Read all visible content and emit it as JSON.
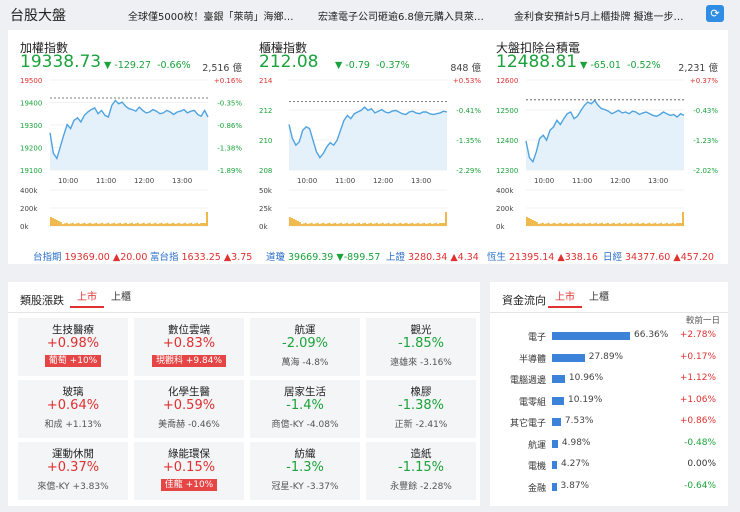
{
  "header": {
    "title": "台股大盤",
    "news": [
      "全球僅5000枚！臺銀「萊萌」海鄉…",
      "宏達電子公司砸逾6.8億元購入貝萊…",
      "金利食安預計5月上櫃掛牌 擬進一步…"
    ]
  },
  "indices": [
    {
      "name": "加權指數",
      "value": "19338.73",
      "change": "-129.27",
      "pct": "-0.66%",
      "volume": "2,516 億",
      "y_labels": [
        "19500",
        "19400",
        "19300",
        "19200",
        "19100"
      ],
      "pct_labels": [
        "+0.16%",
        "-0.35%",
        "-0.86%",
        "-1.38%",
        "-1.89%"
      ],
      "x_labels": [
        "10:00",
        "11:00",
        "12:00",
        "13:00"
      ],
      "vol_labels": [
        "400k",
        "200k",
        "0k"
      ],
      "ref_level": 0.8,
      "line": [
        0.45,
        0.2,
        0.14,
        0.28,
        0.42,
        0.55,
        0.5,
        0.6,
        0.63,
        0.58,
        0.66,
        0.7,
        0.73,
        0.75,
        0.68,
        0.72,
        0.66,
        0.64,
        0.78,
        0.84,
        0.8,
        0.82,
        0.77,
        0.74,
        0.73,
        0.71,
        0.76,
        0.72,
        0.69,
        0.7,
        0.73,
        0.71,
        0.68,
        0.69,
        0.72,
        0.7,
        0.67,
        0.7,
        0.71,
        0.73,
        0.69,
        0.71,
        0.72,
        0.67,
        0.65,
        0.72,
        0.64
      ]
    },
    {
      "name": "櫃檯指數",
      "value": "212.08",
      "change": "-0.79",
      "pct": "-0.37%",
      "volume": "848 億",
      "y_labels": [
        "214",
        "212",
        "210",
        "208"
      ],
      "pct_labels": [
        "+0.53%",
        "-0.41%",
        "-1.35%",
        "-2.29%"
      ],
      "x_labels": [
        "10:00",
        "11:00",
        "12:00",
        "13:00"
      ],
      "vol_labels": [
        "50k",
        "25k",
        "0k"
      ],
      "ref_level": 0.76,
      "line": [
        0.55,
        0.38,
        0.3,
        0.34,
        0.48,
        0.52,
        0.5,
        0.36,
        0.22,
        0.15,
        0.2,
        0.28,
        0.33,
        0.3,
        0.36,
        0.48,
        0.6,
        0.66,
        0.62,
        0.68,
        0.7,
        0.72,
        0.76,
        0.72,
        0.74,
        0.69,
        0.71,
        0.73,
        0.7,
        0.69,
        0.71,
        0.72,
        0.7,
        0.68,
        0.67,
        0.7,
        0.71,
        0.69,
        0.68,
        0.7,
        0.7,
        0.68,
        0.67,
        0.68,
        0.69,
        0.71,
        0.7
      ]
    },
    {
      "name": "大盤扣除台積電",
      "value": "12488.81",
      "change": "-65.01",
      "pct": "-0.52%",
      "volume": "2,231 億",
      "y_labels": [
        "12600",
        "12500",
        "12400",
        "12300"
      ],
      "pct_labels": [
        "+0.37%",
        "-0.43%",
        "-1.23%",
        "-2.02%"
      ],
      "x_labels": [
        "10:00",
        "11:00",
        "12:00",
        "13:00"
      ],
      "vol_labels": [
        "400k",
        "200k",
        "0k"
      ],
      "ref_level": 0.78,
      "line": [
        0.35,
        0.15,
        0.1,
        0.22,
        0.38,
        0.42,
        0.36,
        0.48,
        0.52,
        0.6,
        0.55,
        0.62,
        0.68,
        0.7,
        0.62,
        0.65,
        0.72,
        0.78,
        0.82,
        0.8,
        0.84,
        0.78,
        0.74,
        0.73,
        0.71,
        0.68,
        0.7,
        0.72,
        0.69,
        0.7,
        0.68,
        0.71,
        0.7,
        0.67,
        0.69,
        0.7,
        0.68,
        0.66,
        0.65,
        0.67,
        0.7,
        0.68,
        0.66,
        0.67,
        0.64,
        0.68,
        0.66
      ]
    }
  ],
  "tickers": [
    {
      "name": "台指期",
      "value": "19369.00",
      "change": "▲20.00",
      "dir": "up"
    },
    {
      "name": "富台指",
      "value": "1633.25",
      "change": "▲3.75",
      "dir": "up"
    },
    {
      "name": "道瓊",
      "value": "39669.39",
      "change": "▼-899.57",
      "dir": "dn"
    },
    {
      "name": "上證",
      "value": "3280.34",
      "change": "▲4.34",
      "dir": "up"
    },
    {
      "name": "恆生",
      "value": "21395.14",
      "change": "▲338.16",
      "dir": "up"
    },
    {
      "name": "日經",
      "value": "34377.60",
      "change": "▲457.20",
      "dir": "up"
    }
  ],
  "sectors": {
    "title": "類股漲跌",
    "tabs": [
      "上市",
      "上櫃"
    ],
    "cards": [
      {
        "name": "生技醫療",
        "pct": "+0.98%",
        "dir": "up",
        "stock": "葡萄",
        "stock_chg": "+10%",
        "badge": true
      },
      {
        "name": "數位雲端",
        "pct": "+0.83%",
        "dir": "up",
        "stock": "現觀科",
        "stock_chg": "+9.84%",
        "badge": true
      },
      {
        "name": "航運",
        "pct": "-2.09%",
        "dir": "dn",
        "stock": "萬海",
        "stock_chg": "-4.8%",
        "badge": false
      },
      {
        "name": "觀光",
        "pct": "-1.85%",
        "dir": "dn",
        "stock": "遠雄來",
        "stock_chg": "-3.16%",
        "badge": false
      },
      {
        "name": "玻璃",
        "pct": "+0.64%",
        "dir": "up",
        "stock": "和成",
        "stock_chg": "+1.13%",
        "badge": false
      },
      {
        "name": "化學生醫",
        "pct": "+0.59%",
        "dir": "up",
        "stock": "美喬赫",
        "stock_chg": "-0.46%",
        "badge": false
      },
      {
        "name": "居家生活",
        "pct": "-1.4%",
        "dir": "dn",
        "stock": "商億-KY",
        "stock_chg": "-4.08%",
        "badge": false
      },
      {
        "name": "橡膠",
        "pct": "-1.38%",
        "dir": "dn",
        "stock": "正新",
        "stock_chg": "-2.41%",
        "badge": false
      },
      {
        "name": "運動休閒",
        "pct": "+0.37%",
        "dir": "up",
        "stock": "來億-KY",
        "stock_chg": "+3.83%",
        "badge": false
      },
      {
        "name": "綠能環保",
        "pct": "+0.15%",
        "dir": "up",
        "stock": "佳龍",
        "stock_chg": "+10%",
        "badge": true
      },
      {
        "name": "紡織",
        "pct": "-1.3%",
        "dir": "dn",
        "stock": "冠星-KY",
        "stock_chg": "-3.37%",
        "badge": false
      },
      {
        "name": "造紙",
        "pct": "-1.15%",
        "dir": "dn",
        "stock": "永豐餘",
        "stock_chg": "-2.28%",
        "badge": false
      }
    ]
  },
  "fund_flow": {
    "title": "資金流向",
    "tabs": [
      "上市",
      "上櫃"
    ],
    "column_header": "較前一日",
    "rows": [
      {
        "name": "電子",
        "share": "66.36%",
        "share_value": 66.36,
        "change": "+2.78%",
        "dir": "up"
      },
      {
        "name": "半導體",
        "share": "27.89%",
        "share_value": 27.89,
        "change": "+0.17%",
        "dir": "up"
      },
      {
        "name": "電腦週邊",
        "share": "10.96%",
        "share_value": 10.96,
        "change": "+1.12%",
        "dir": "up"
      },
      {
        "name": "電零組",
        "share": "10.19%",
        "share_value": 10.19,
        "change": "+1.06%",
        "dir": "up"
      },
      {
        "name": "其它電子",
        "share": "7.53%",
        "share_value": 7.53,
        "change": "+0.86%",
        "dir": "up"
      },
      {
        "name": "航運",
        "share": "4.98%",
        "share_value": 4.98,
        "change": "-0.48%",
        "dir": "dn"
      },
      {
        "name": "電機",
        "share": "4.27%",
        "share_value": 4.27,
        "change": "0.00%",
        "dir": "flat"
      },
      {
        "name": "金融",
        "share": "3.87%",
        "share_value": 3.87,
        "change": "-0.64%",
        "dir": "dn"
      }
    ]
  },
  "colors": {
    "up": "#e03030",
    "down": "#1aa33b",
    "line": "#4fa3e0",
    "fill": "#e4f1fb",
    "volume": "#f0b84a",
    "bar": "#3d82d9"
  }
}
